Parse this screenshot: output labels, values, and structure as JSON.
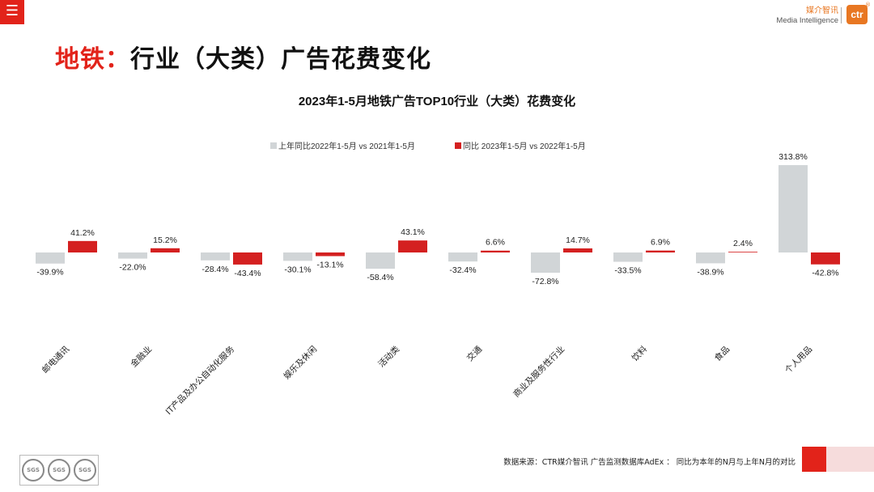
{
  "header": {
    "menu_icon": "hamburger-icon",
    "brand_cn": "媒介智讯",
    "brand_en": "Media Intelligence",
    "logo_text": "ctr",
    "logo_reg": "®"
  },
  "page": {
    "title_accent": "地铁：",
    "title_rest": "行业（大类）广告花费变化"
  },
  "footer": {
    "source": "数据来源：CTR媒介智讯 广告监测数据库AdEx ： 同比为本年的N月与上年N月的对比",
    "badge_text": "SGS"
  },
  "colors": {
    "accent": "#e2231a",
    "gray_bar": "#d1d5d7",
    "red_bar": "#d42020",
    "brand_orange": "#e87722"
  },
  "chart_data": {
    "type": "bar",
    "title": "2023年1-5月地铁广告TOP10行业（大类）花费变化",
    "categories": [
      "邮电通讯",
      "金融业",
      "IT产品及办公自动化服务",
      "娱乐及休闲",
      "活动类",
      "交通",
      "商业及服务性行业",
      "饮料",
      "食品",
      "个人用品"
    ],
    "series": [
      {
        "name": "上年同比2022年1-5月  vs  2021年1-5月",
        "values": [
          -39.9,
          -22.0,
          -28.4,
          -30.1,
          -58.4,
          -32.4,
          -72.8,
          -33.5,
          -38.9,
          313.8
        ],
        "labels": [
          "-39.9%",
          "-22.0%",
          "-28.4%",
          "-30.1%",
          "-58.4%",
          "-32.4%",
          "-72.8%",
          "-33.5%",
          "-38.9%",
          "313.8%"
        ]
      },
      {
        "name": "同比 2023年1-5月  vs  2022年1-5月",
        "values": [
          41.2,
          15.2,
          -43.4,
          -13.1,
          43.1,
          6.6,
          14.7,
          6.9,
          2.4,
          -42.8
        ],
        "labels": [
          "41.2%",
          "15.2%",
          "-43.4%",
          "-13.1%",
          "43.1%",
          "6.6%",
          "14.7%",
          "6.9%",
          "2.4%",
          "-42.8%"
        ]
      }
    ],
    "xlabel": "",
    "ylabel": "",
    "legend": "top-center",
    "grid": false
  }
}
